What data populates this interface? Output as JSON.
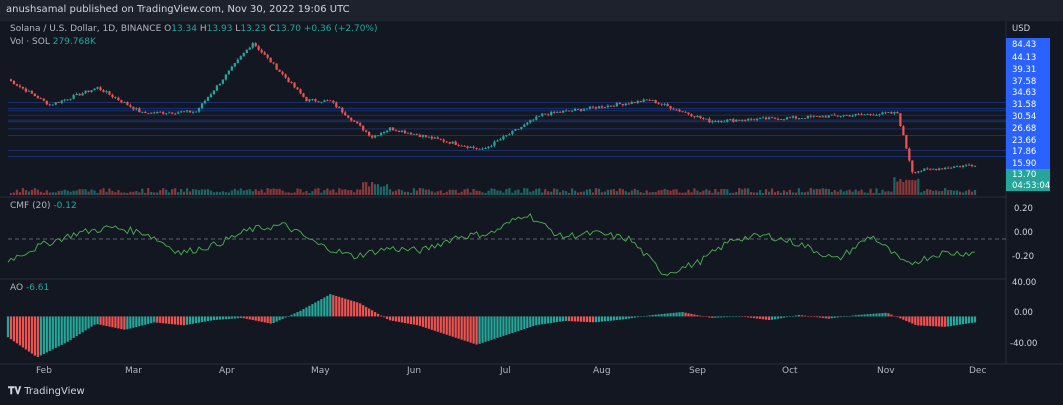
{
  "publisher": "anushsamal published on TradingView.com, Nov 30, 2022 19:06 UTC",
  "legend": {
    "pair": "Solana / U.S. Dollar, 1D, BINANCE",
    "o_label": "O",
    "o": "13.34",
    "h_label": "H",
    "h": "13.93",
    "l_label": "L",
    "l": "13.23",
    "c_label": "C",
    "c": "13.70",
    "change": "+0.36 (+2.70%)",
    "vol_label": "Vol · SOL",
    "vol": "279.768K"
  },
  "cmf_legend": {
    "label": "CMF (20)",
    "value": "-0.12"
  },
  "ao_legend": {
    "label": "AO",
    "value": "-6.61"
  },
  "price_axis": {
    "currency": "USD",
    "levels": [
      "84.43",
      "44.13",
      "39.31",
      "37.58",
      "34.63",
      "31.58",
      "30.54",
      "26.68",
      "23.66",
      "17.86",
      "15.90"
    ],
    "last_price": "13.70",
    "countdown": "04:53:04"
  },
  "cmf_axis": [
    "0.20",
    "0.00",
    "-0.20"
  ],
  "ao_axis": [
    "40.00",
    "0.00",
    "-40.00"
  ],
  "time_axis": [
    "Feb",
    "Mar",
    "Apr",
    "May",
    "Jun",
    "Jul",
    "Aug",
    "Sep",
    "Oct",
    "Nov",
    "Dec"
  ],
  "branding": "TradingView",
  "colors": {
    "up": "#26a69a",
    "down": "#ef5350",
    "cmf": "#4caf50",
    "background": "#131722",
    "accent": "#2962ff"
  },
  "chart_data": {
    "type": "candlestick",
    "symbol": "SOL/USD",
    "interval": "1D",
    "price_key_points": [
      {
        "x": "Jan 10",
        "y": 68
      },
      {
        "x": "Jan 24",
        "y": 42
      },
      {
        "x": "Feb 9",
        "y": 58
      },
      {
        "x": "Feb 24",
        "y": 36
      },
      {
        "x": "Mar 14",
        "y": 37
      },
      {
        "x": "Apr 2",
        "y": 136
      },
      {
        "x": "Apr 20",
        "y": 46
      },
      {
        "x": "Apr 28",
        "y": 45
      },
      {
        "x": "May 12",
        "y": 23
      },
      {
        "x": "May 18",
        "y": 27
      },
      {
        "x": "Jun 18",
        "y": 18
      },
      {
        "x": "Jul 8",
        "y": 35
      },
      {
        "x": "Aug 13",
        "y": 46
      },
      {
        "x": "Sep 2",
        "y": 31
      },
      {
        "x": "Oct 1",
        "y": 33
      },
      {
        "x": "Nov 4",
        "y": 36
      },
      {
        "x": "Nov 9",
        "y": 12
      },
      {
        "x": "Nov 30",
        "y": 13.7
      }
    ],
    "cmf_series": [
      -0.18,
      -0.05,
      0.05,
      0.1,
      0.05,
      -0.12,
      -0.05,
      0.08,
      0.12,
      -0.05,
      -0.15,
      -0.08,
      -0.1,
      0.02,
      0.05,
      0.22,
      0.02,
      0.05,
      0.0,
      -0.3,
      -0.2,
      0.0,
      0.03,
      -0.05,
      -0.18,
      0.03,
      -0.22,
      -0.12,
      -0.12
    ],
    "ao_series": [
      -28,
      -55,
      -35,
      -10,
      -18,
      -8,
      -12,
      -5,
      -2,
      -10,
      8,
      30,
      18,
      -5,
      -12,
      -25,
      -38,
      -25,
      -12,
      -6,
      -8,
      -4,
      2,
      6,
      -2,
      0,
      -5,
      2,
      -3,
      2,
      5,
      -12,
      -14,
      -8
    ],
    "ylim_cmf": [
      -0.3,
      0.3
    ],
    "ylim_ao": [
      -60,
      45
    ]
  }
}
